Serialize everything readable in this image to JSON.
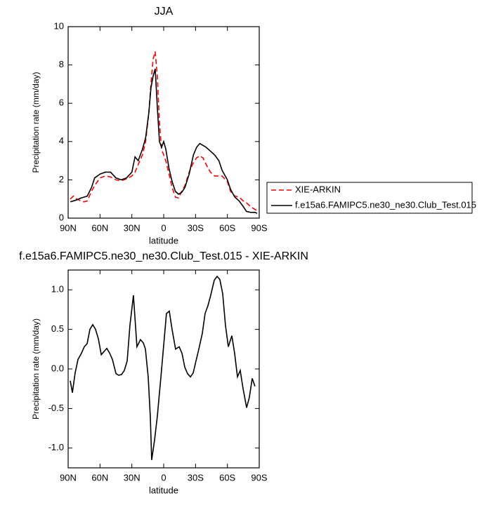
{
  "chart_data": [
    {
      "type": "line",
      "title": "JJA",
      "x_label": "latitude",
      "y_label": "Precipitation rate (mm/day)",
      "x": [
        88,
        85,
        82,
        78,
        75,
        72,
        68,
        65,
        60,
        55,
        50,
        45,
        40,
        35,
        30,
        27,
        24,
        20,
        17,
        14,
        12,
        10,
        8,
        6,
        4,
        2,
        0,
        -2,
        -5,
        -8,
        -11,
        -14,
        -17,
        -20,
        -24,
        -28,
        -31,
        -34,
        -37,
        -40,
        -44,
        -48,
        -52,
        -55,
        -60,
        -63,
        -67,
        -71,
        -75,
        -78,
        -82,
        -86,
        -88
      ],
      "series": [
        {
          "name": "XIE-ARKIN",
          "color": "#ff0000",
          "line_style": "dashed",
          "values": [
            1.0,
            1.15,
            1.0,
            0.9,
            0.85,
            0.9,
            1.4,
            1.7,
            2.1,
            2.2,
            2.15,
            2.0,
            1.95,
            2.05,
            2.2,
            2.4,
            2.8,
            3.3,
            4.0,
            5.5,
            7.0,
            8.3,
            8.7,
            7.4,
            5.0,
            3.6,
            3.3,
            3.0,
            2.3,
            1.6,
            1.1,
            1.05,
            1.4,
            1.7,
            2.4,
            2.9,
            3.15,
            3.25,
            3.15,
            2.8,
            2.4,
            2.2,
            2.2,
            2.2,
            1.9,
            1.4,
            1.15,
            1.1,
            0.9,
            0.8,
            0.6,
            0.45,
            0.4
          ]
        },
        {
          "name": "f.e15a6.FAMIPC5.ne30_ne30.Club_Test.015",
          "color": "#000000",
          "line_style": "solid",
          "values": [
            0.85,
            0.9,
            0.95,
            1.05,
            1.1,
            1.15,
            1.6,
            2.1,
            2.3,
            2.4,
            2.4,
            2.1,
            2.0,
            2.1,
            2.4,
            3.2,
            3.0,
            3.6,
            4.2,
            5.5,
            6.8,
            7.4,
            7.8,
            5.8,
            4.0,
            3.7,
            4.0,
            3.6,
            2.6,
            1.9,
            1.4,
            1.25,
            1.35,
            1.6,
            2.3,
            3.3,
            3.7,
            3.9,
            3.8,
            3.7,
            3.5,
            3.3,
            3.0,
            2.5,
            2.0,
            1.5,
            1.1,
            0.9,
            0.6,
            0.35,
            0.3,
            0.3,
            0.25
          ]
        }
      ],
      "xlim": [
        90,
        -90
      ],
      "xticks": [
        {
          "value": 90,
          "label": "90N"
        },
        {
          "value": 60,
          "label": "60N"
        },
        {
          "value": 30,
          "label": "30N"
        },
        0,
        {
          "value": -30,
          "label": "30S"
        },
        {
          "value": -60,
          "label": "60S"
        },
        {
          "value": -90,
          "label": "90S"
        }
      ],
      "ylim": [
        0,
        10
      ],
      "yticks": [
        0,
        2,
        4,
        6,
        8,
        10
      ],
      "grid": false,
      "legend": "right"
    },
    {
      "type": "line",
      "title": "f.e15a6.FAMIPC5.ne30_ne30.Club_Test.015 - XIE-ARKIN",
      "x_label": "latitude",
      "y_label": "Precipitation rate (mm/day)",
      "x": [
        88.0,
        86.0,
        83.4,
        80.7,
        77.4,
        74.8,
        72.1,
        69.5,
        66.8,
        64.2,
        61.5,
        58.8,
        56.2,
        53.6,
        50.9,
        48.3,
        44.9,
        42.4,
        39.7,
        37.1,
        34.4,
        31.8,
        28.5,
        25.2,
        21.9,
        19.2,
        17.2,
        14.6,
        12.6,
        11.3,
        8.6,
        6.0,
        2.6,
        0.0,
        -2.6,
        -5.3,
        -7.9,
        -11.2,
        -14.6,
        -17.2,
        -19.9,
        -22.5,
        -25.2,
        -27.8,
        -30.4,
        -33.1,
        -36.4,
        -39.0,
        -41.7,
        -44.3,
        -47.6,
        -50.3,
        -52.9,
        -55.6,
        -58.2,
        -60.9,
        -64.2,
        -66.8,
        -69.5,
        -72.1,
        -74.8,
        -78.1,
        -80.7,
        -83.4,
        -86.0
      ],
      "series": [
        {
          "color": "#000000",
          "line_style": "solid",
          "values": [
            -0.15,
            -0.3,
            -0.05,
            0.12,
            0.2,
            0.28,
            0.32,
            0.5,
            0.56,
            0.5,
            0.38,
            0.18,
            0.22,
            0.26,
            0.2,
            0.12,
            -0.06,
            -0.08,
            -0.07,
            -0.02,
            0.1,
            0.55,
            0.93,
            0.28,
            0.37,
            0.33,
            0.25,
            -0.1,
            -0.6,
            -1.15,
            -0.9,
            -0.6,
            -0.1,
            0.3,
            0.7,
            0.73,
            0.5,
            0.25,
            0.28,
            0.2,
            0.02,
            -0.06,
            -0.1,
            -0.05,
            0.1,
            0.25,
            0.45,
            0.7,
            0.8,
            0.93,
            1.12,
            1.17,
            1.13,
            0.95,
            0.55,
            0.28,
            0.42,
            0.2,
            -0.1,
            -0.02,
            -0.25,
            -0.49,
            -0.36,
            -0.12,
            -0.22
          ]
        }
      ],
      "xlim": [
        90,
        -90
      ],
      "xticks": [
        {
          "value": 90,
          "label": "90N"
        },
        {
          "value": 60,
          "label": "60N"
        },
        {
          "value": 30,
          "label": "30N"
        },
        0,
        {
          "value": -30,
          "label": "30S"
        },
        {
          "value": -60,
          "label": "60S"
        },
        {
          "value": -90,
          "label": "90S"
        }
      ],
      "ylim": [
        -1.25,
        1.25
      ],
      "yticks": [
        {
          "value": -1,
          "label": "-1.0"
        },
        -0.5,
        {
          "value": 0,
          "label": "0.0"
        },
        0.5,
        {
          "value": 1,
          "label": "1.0"
        }
      ],
      "grid": false
    }
  ]
}
